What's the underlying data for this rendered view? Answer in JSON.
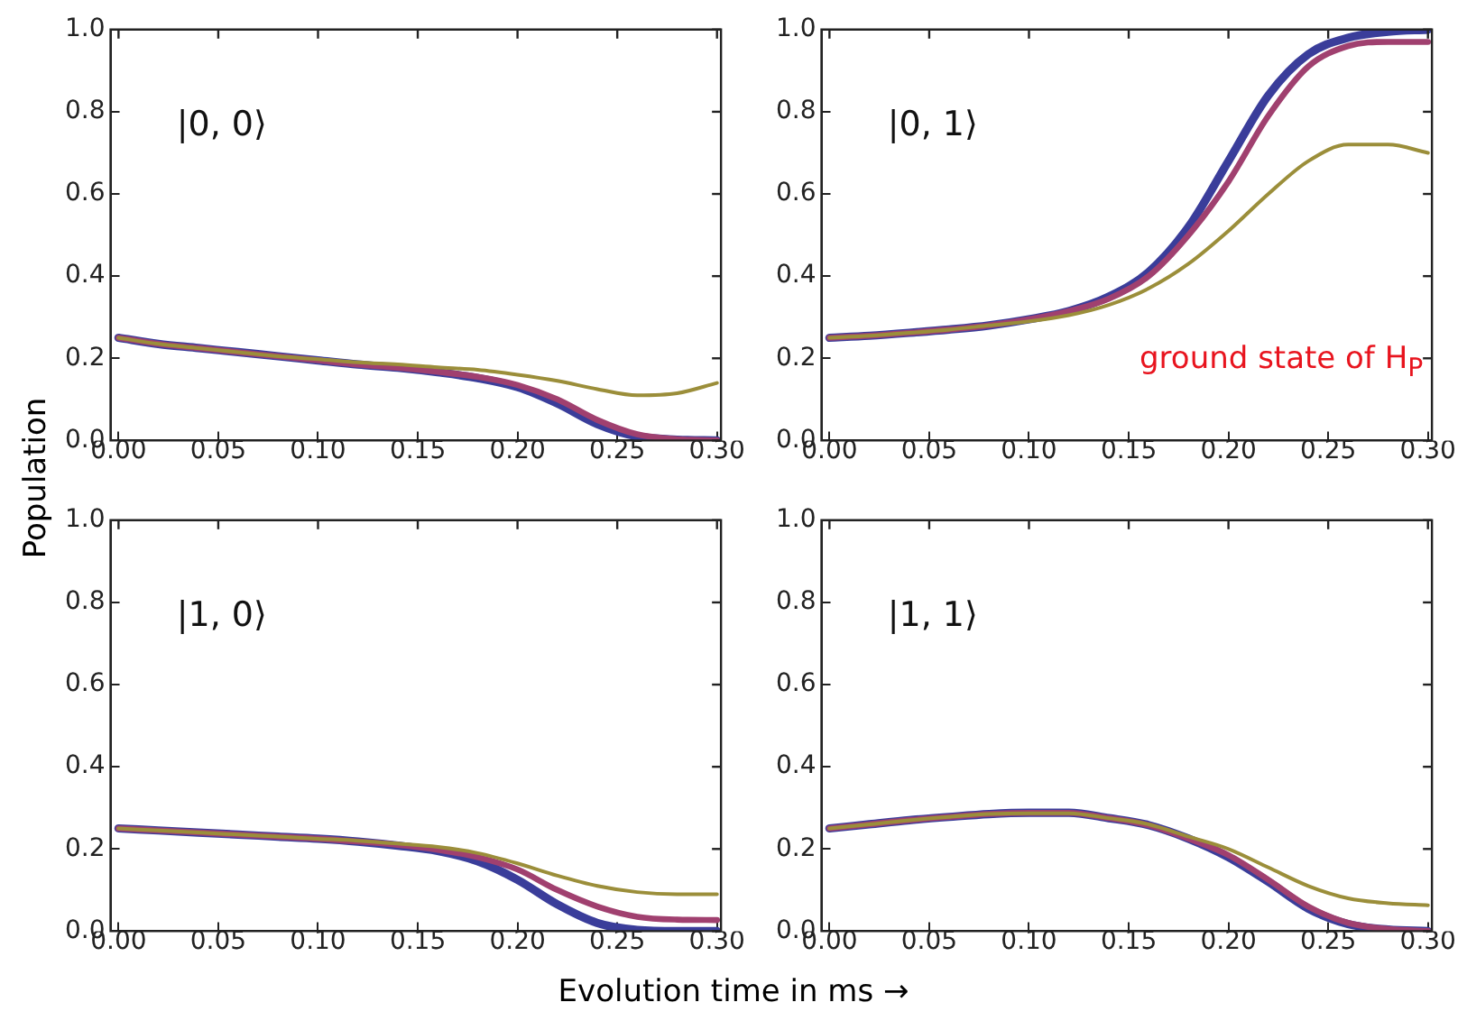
{
  "chart_data": [
    {
      "type": "line",
      "ylabel": "Population",
      "annotations": [
        "|0, 0⟩"
      ],
      "xlim": [
        -0.004,
        0.302
      ],
      "ylim": [
        0,
        1
      ],
      "grid": false,
      "legend": false,
      "marker": "none",
      "line_style": "solid",
      "xticks": [
        {
          "value": 0,
          "label": "0.00"
        },
        {
          "value": 0.05,
          "label": "0.05"
        },
        {
          "value": 0.1,
          "label": "0.10"
        },
        {
          "value": 0.15,
          "label": "0.15"
        },
        {
          "value": 0.2,
          "label": "0.20"
        },
        {
          "value": 0.25,
          "label": "0.25"
        },
        {
          "value": 0.3,
          "label": "0.30"
        }
      ],
      "yticks": [
        {
          "value": 0,
          "label": "0.0"
        },
        {
          "value": 0.2,
          "label": "0.2"
        },
        {
          "value": 0.4,
          "label": "0.4"
        },
        {
          "value": 0.6,
          "label": "0.6"
        },
        {
          "value": 0.8,
          "label": "0.8"
        },
        {
          "value": 1,
          "label": "1.0"
        }
      ],
      "x": [
        0,
        0.02,
        0.04,
        0.06,
        0.08,
        0.1,
        0.12,
        0.14,
        0.16,
        0.18,
        0.2,
        0.22,
        0.24,
        0.26,
        0.28,
        0.3
      ],
      "series": [
        {
          "color": "#3a3d9a",
          "values": [
            0.25,
            0.235,
            0.225,
            0.215,
            0.205,
            0.195,
            0.185,
            0.177,
            0.166,
            0.152,
            0.13,
            0.09,
            0.04,
            0.01,
            0.002,
            0
          ]
        },
        {
          "color": "#a0406f",
          "values": [
            0.25,
            0.235,
            0.225,
            0.215,
            0.205,
            0.195,
            0.185,
            0.177,
            0.167,
            0.155,
            0.135,
            0.1,
            0.05,
            0.015,
            0.003,
            0
          ]
        },
        {
          "color": "#9b8e3a",
          "values": [
            0.25,
            0.235,
            0.225,
            0.215,
            0.205,
            0.198,
            0.19,
            0.185,
            0.178,
            0.172,
            0.16,
            0.145,
            0.125,
            0.11,
            0.115,
            0.14
          ]
        }
      ]
    },
    {
      "type": "line",
      "annotations": [
        "|0, 1⟩",
        "ground state of H$_{P}$"
      ],
      "xlim": [
        -0.004,
        0.302
      ],
      "ylim": [
        0,
        1
      ],
      "grid": false,
      "legend": false,
      "marker": "none",
      "line_style": "solid",
      "xticks": [
        {
          "value": 0,
          "label": "0.00"
        },
        {
          "value": 0.05,
          "label": "0.05"
        },
        {
          "value": 0.1,
          "label": "0.10"
        },
        {
          "value": 0.15,
          "label": "0.15"
        },
        {
          "value": 0.2,
          "label": "0.20"
        },
        {
          "value": 0.25,
          "label": "0.25"
        },
        {
          "value": 0.3,
          "label": "0.30"
        }
      ],
      "yticks": [
        {
          "value": 0,
          "label": "0.0"
        },
        {
          "value": 0.2,
          "label": "0.2"
        },
        {
          "value": 0.4,
          "label": "0.4"
        },
        {
          "value": 0.6,
          "label": "0.6"
        },
        {
          "value": 0.8,
          "label": "0.8"
        },
        {
          "value": 1,
          "label": "1.0"
        }
      ],
      "x": [
        0,
        0.02,
        0.04,
        0.06,
        0.08,
        0.1,
        0.12,
        0.14,
        0.16,
        0.18,
        0.2,
        0.22,
        0.24,
        0.26,
        0.28,
        0.3
      ],
      "series": [
        {
          "color": "#3a3d9a",
          "values": [
            0.25,
            0.255,
            0.262,
            0.27,
            0.28,
            0.295,
            0.315,
            0.35,
            0.41,
            0.52,
            0.68,
            0.84,
            0.94,
            0.98,
            0.995,
            1
          ]
        },
        {
          "color": "#a0406f",
          "values": [
            0.25,
            0.255,
            0.262,
            0.27,
            0.28,
            0.295,
            0.315,
            0.345,
            0.4,
            0.5,
            0.63,
            0.79,
            0.91,
            0.96,
            0.97,
            0.97
          ]
        },
        {
          "color": "#9b8e3a",
          "values": [
            0.25,
            0.255,
            0.262,
            0.27,
            0.28,
            0.29,
            0.305,
            0.33,
            0.37,
            0.43,
            0.51,
            0.6,
            0.68,
            0.72,
            0.72,
            0.7
          ]
        }
      ]
    },
    {
      "type": "line",
      "xlabel": "Evolution time in ms →",
      "annotations": [
        "|1, 0⟩"
      ],
      "xlim": [
        -0.004,
        0.302
      ],
      "ylim": [
        0,
        1
      ],
      "grid": false,
      "legend": false,
      "marker": "none",
      "line_style": "solid",
      "xticks": [
        {
          "value": 0,
          "label": "0.00"
        },
        {
          "value": 0.05,
          "label": "0.05"
        },
        {
          "value": 0.1,
          "label": "0.10"
        },
        {
          "value": 0.15,
          "label": "0.15"
        },
        {
          "value": 0.2,
          "label": "0.20"
        },
        {
          "value": 0.25,
          "label": "0.25"
        },
        {
          "value": 0.3,
          "label": "0.30"
        }
      ],
      "yticks": [
        {
          "value": 0,
          "label": "0.0"
        },
        {
          "value": 0.2,
          "label": "0.2"
        },
        {
          "value": 0.4,
          "label": "0.4"
        },
        {
          "value": 0.6,
          "label": "0.6"
        },
        {
          "value": 0.8,
          "label": "0.8"
        },
        {
          "value": 1,
          "label": "1.0"
        }
      ],
      "x": [
        0,
        0.02,
        0.04,
        0.06,
        0.08,
        0.1,
        0.12,
        0.14,
        0.16,
        0.18,
        0.2,
        0.22,
        0.24,
        0.26,
        0.28,
        0.3
      ],
      "series": [
        {
          "color": "#3a3d9a",
          "values": [
            0.25,
            0.245,
            0.24,
            0.235,
            0.23,
            0.225,
            0.218,
            0.208,
            0.195,
            0.17,
            0.125,
            0.065,
            0.02,
            0.003,
            0,
            0
          ]
        },
        {
          "color": "#a0406f",
          "values": [
            0.25,
            0.245,
            0.24,
            0.235,
            0.23,
            0.225,
            0.218,
            0.21,
            0.198,
            0.18,
            0.15,
            0.1,
            0.06,
            0.035,
            0.028,
            0.027
          ]
        },
        {
          "color": "#9b8e3a",
          "values": [
            0.25,
            0.245,
            0.24,
            0.235,
            0.23,
            0.225,
            0.22,
            0.213,
            0.205,
            0.19,
            0.165,
            0.135,
            0.11,
            0.095,
            0.09,
            0.09
          ]
        }
      ]
    },
    {
      "type": "line",
      "annotations": [
        "|1, 1⟩"
      ],
      "xlim": [
        -0.004,
        0.302
      ],
      "ylim": [
        0,
        1
      ],
      "grid": false,
      "legend": false,
      "marker": "none",
      "line_style": "solid",
      "xticks": [
        {
          "value": 0,
          "label": "0.00"
        },
        {
          "value": 0.05,
          "label": "0.05"
        },
        {
          "value": 0.1,
          "label": "0.10"
        },
        {
          "value": 0.15,
          "label": "0.15"
        },
        {
          "value": 0.2,
          "label": "0.20"
        },
        {
          "value": 0.25,
          "label": "0.25"
        },
        {
          "value": 0.3,
          "label": "0.30"
        }
      ],
      "yticks": [
        {
          "value": 0,
          "label": "0.0"
        },
        {
          "value": 0.2,
          "label": "0.2"
        },
        {
          "value": 0.4,
          "label": "0.4"
        },
        {
          "value": 0.6,
          "label": "0.6"
        },
        {
          "value": 0.8,
          "label": "0.8"
        },
        {
          "value": 1,
          "label": "1.0"
        }
      ],
      "x": [
        0,
        0.02,
        0.04,
        0.06,
        0.08,
        0.1,
        0.12,
        0.14,
        0.16,
        0.18,
        0.2,
        0.22,
        0.24,
        0.26,
        0.28,
        0.3
      ],
      "series": [
        {
          "color": "#3a3d9a",
          "values": [
            0.25,
            0.26,
            0.27,
            0.278,
            0.285,
            0.288,
            0.288,
            0.275,
            0.258,
            0.225,
            0.18,
            0.12,
            0.055,
            0.017,
            0.004,
            0
          ]
        },
        {
          "color": "#a0406f",
          "values": [
            0.25,
            0.26,
            0.27,
            0.278,
            0.285,
            0.288,
            0.288,
            0.275,
            0.258,
            0.225,
            0.185,
            0.125,
            0.06,
            0.02,
            0.005,
            0
          ]
        },
        {
          "color": "#9b8e3a",
          "values": [
            0.25,
            0.26,
            0.27,
            0.278,
            0.285,
            0.287,
            0.287,
            0.275,
            0.26,
            0.23,
            0.2,
            0.155,
            0.11,
            0.08,
            0.068,
            0.063
          ]
        }
      ]
    }
  ]
}
